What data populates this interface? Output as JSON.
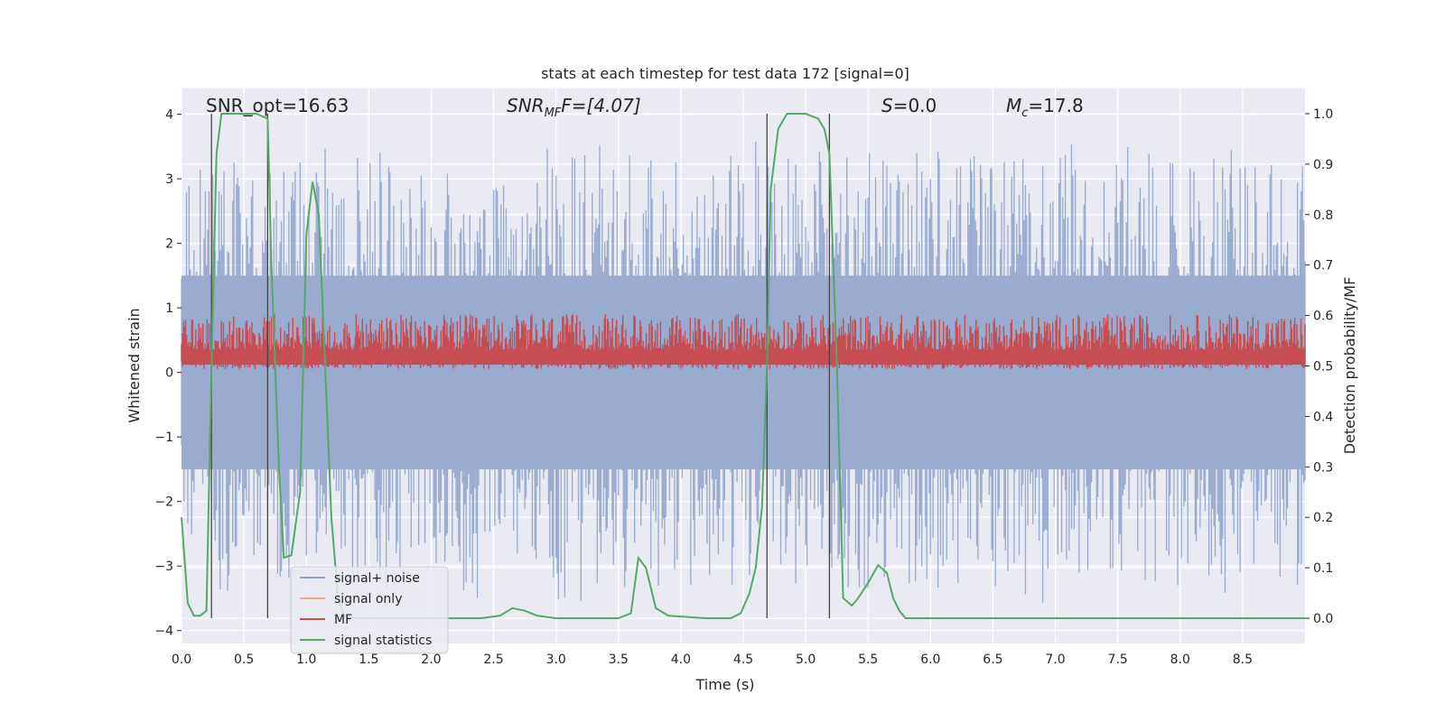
{
  "chart_data": {
    "type": "line",
    "title": "stats at each timestep for test data 172 [signal=0]",
    "xlabel": "Time (s)",
    "ylabel_left": "Whitened strain",
    "ylabel_right": "Detection probability/MF",
    "xlim": [
      0.0,
      9.0
    ],
    "ylim_left": [
      -4.2,
      4.4
    ],
    "ylim_right": [
      -0.05,
      1.05
    ],
    "xticks": [
      "0.0",
      "0.5",
      "1.0",
      "1.5",
      "2.0",
      "2.5",
      "3.0",
      "3.5",
      "4.0",
      "4.5",
      "5.0",
      "5.5",
      "6.0",
      "6.5",
      "7.0",
      "7.5",
      "8.0",
      "8.5"
    ],
    "yticks_left": [
      "4",
      "3",
      "2",
      "1",
      "0",
      "−1",
      "−2",
      "−3",
      "−4"
    ],
    "yticks_right": [
      "1.0",
      "0.9",
      "0.8",
      "0.7",
      "0.6",
      "0.5",
      "0.4",
      "0.3",
      "0.2",
      "0.1",
      "0.0"
    ],
    "annotations": {
      "snr_opt": "SNR_opt=16.63",
      "snr_mf_main": "SNR",
      "snr_mf_sub": "MF",
      "snr_mf_value": "F=[4.07]",
      "s_main": "S",
      "s_value": "=0.0",
      "mc_main": "M",
      "mc_sub": "c",
      "mc_value": "=17.8"
    },
    "legend": [
      "signal+ noise",
      "signal only",
      "MF",
      "signal statistics"
    ],
    "legend_position": "lower-left",
    "vertical_markers_x": [
      0.24,
      0.69,
      4.69,
      5.19
    ],
    "signal_statistics": {
      "x": [
        0.0,
        0.05,
        0.1,
        0.15,
        0.2,
        0.24,
        0.28,
        0.32,
        0.38,
        0.5,
        0.6,
        0.69,
        0.72,
        0.78,
        0.82,
        0.88,
        0.95,
        1.0,
        1.05,
        1.1,
        1.15,
        1.2,
        1.25,
        1.3,
        1.4,
        1.6,
        2.0,
        2.4,
        2.55,
        2.65,
        2.75,
        2.85,
        3.0,
        3.3,
        3.5,
        3.6,
        3.66,
        3.72,
        3.8,
        3.9,
        4.2,
        4.4,
        4.48,
        4.55,
        4.6,
        4.65,
        4.69,
        4.72,
        4.78,
        4.85,
        5.0,
        5.1,
        5.15,
        5.19,
        5.25,
        5.3,
        5.37,
        5.42,
        5.5,
        5.58,
        5.65,
        5.7,
        5.75,
        5.8,
        5.9,
        6.2,
        9.0
      ],
      "y": [
        0.2,
        0.03,
        0.005,
        0.005,
        0.015,
        0.5,
        0.92,
        1.0,
        1.0,
        1.0,
        1.0,
        0.99,
        0.7,
        0.3,
        0.12,
        0.125,
        0.25,
        0.76,
        0.865,
        0.8,
        0.5,
        0.2,
        0.05,
        0.005,
        0.0,
        0.0,
        0.0,
        0.0,
        0.005,
        0.02,
        0.015,
        0.005,
        0.0,
        0.0,
        0.0,
        0.01,
        0.12,
        0.1,
        0.02,
        0.005,
        0.0,
        0.0,
        0.01,
        0.05,
        0.1,
        0.22,
        0.5,
        0.85,
        0.97,
        1.0,
        1.0,
        0.99,
        0.97,
        0.92,
        0.5,
        0.04,
        0.025,
        0.04,
        0.07,
        0.105,
        0.09,
        0.04,
        0.015,
        0.0,
        0.0,
        0.0,
        0.0
      ]
    },
    "noise_band_left": [
      -3.6,
      3.6
    ],
    "mf_band_left": [
      0.0,
      0.9
    ]
  }
}
